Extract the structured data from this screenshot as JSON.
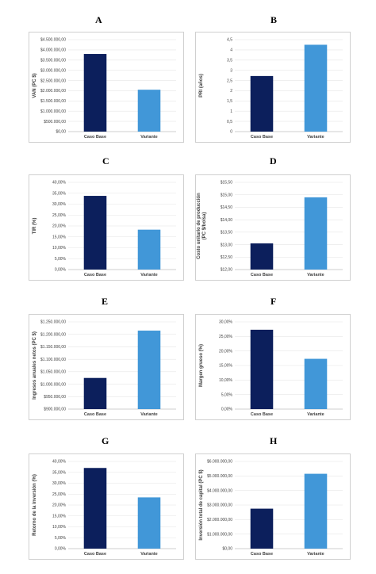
{
  "colors": {
    "caso_base": "#0c1f5c",
    "variante": "#4197d8"
  },
  "chart_data": [
    {
      "panel": "A",
      "type": "bar",
      "categories": [
        "Caso Base",
        "Variante"
      ],
      "values": [
        3800000,
        2050000
      ],
      "ylabel": "VAN (PC $)",
      "ylim": [
        0,
        4500000
      ],
      "ticks": [
        "$0,00",
        "$500.000,00",
        "$1.000.000,00",
        "$1.500.000,00",
        "$2.000.000,00",
        "$2.500.000,00",
        "$3.000.000,00",
        "$3.500.000,00",
        "$4.000.000,00",
        "$4.500.000,00"
      ],
      "grid": true
    },
    {
      "panel": "B",
      "type": "bar",
      "categories": [
        "Caso Base",
        "Variante"
      ],
      "values": [
        2.72,
        4.25
      ],
      "ylabel": "PRI (años)",
      "ylim": [
        0,
        4.5
      ],
      "ticks": [
        "0",
        "0,5",
        "1",
        "1,5",
        "2",
        "2,5",
        "3",
        "3,5",
        "4",
        "4,5"
      ],
      "grid": true
    },
    {
      "panel": "C",
      "type": "bar",
      "categories": [
        "Caso Base",
        "Variante"
      ],
      "values": [
        0.338,
        0.183
      ],
      "ylabel": "TIR (%)",
      "ylim": [
        0,
        0.4
      ],
      "ticks": [
        "0,00%",
        "5,00%",
        "10,00%",
        "15,00%",
        "20,00%",
        "25,00%",
        "30,00%",
        "35,00%",
        "40,00%"
      ],
      "grid": true
    },
    {
      "panel": "D",
      "type": "bar",
      "categories": [
        "Caso Base",
        "Variante"
      ],
      "values": [
        13.05,
        14.9
      ],
      "ylabel": "Costo unitario de producción (PC $/bolsa)",
      "ylim": [
        12,
        15.5
      ],
      "ticks": [
        "$12,00",
        "$12,50",
        "$13,00",
        "$13,50",
        "$14,00",
        "$14,50",
        "$15,00",
        "$15,50"
      ],
      "grid": true
    },
    {
      "panel": "E",
      "type": "bar",
      "categories": [
        "Caso Base",
        "Variante"
      ],
      "values": [
        1025000,
        1215000
      ],
      "ylabel": "Ingresos anuales netos (PC $)",
      "ylim": [
        900000,
        1250000
      ],
      "ticks": [
        "$900.000,00",
        "$950.000,00",
        "$1.000.000,00",
        "$1.050.000,00",
        "$1.100.000,00",
        "$1.150.000,00",
        "$1.200.000,00",
        "$1.250.000,00"
      ],
      "grid": true
    },
    {
      "panel": "F",
      "type": "bar",
      "categories": [
        "Caso Base",
        "Variante"
      ],
      "values": [
        0.273,
        0.173
      ],
      "ylabel": "Margen grueso (%)",
      "ylim": [
        0,
        0.3
      ],
      "ticks": [
        "0,00%",
        "5,00%",
        "10,00%",
        "15,00%",
        "20,00%",
        "25,00%",
        "30,00%"
      ],
      "grid": true
    },
    {
      "panel": "G",
      "type": "bar",
      "categories": [
        "Caso Base",
        "Variante"
      ],
      "values": [
        0.37,
        0.235
      ],
      "ylabel": "Retorno de la inversión (%)",
      "ylim": [
        0,
        0.4
      ],
      "ticks": [
        "0,00%",
        "5,00%",
        "10,00%",
        "15,00%",
        "20,00%",
        "25,00%",
        "30,00%",
        "35,00%",
        "40,00%"
      ],
      "grid": true
    },
    {
      "panel": "H",
      "type": "bar",
      "categories": [
        "Caso Base",
        "Variante"
      ],
      "values": [
        2750000,
        5150000
      ],
      "ylabel": "Inversión total de capital (PC $)",
      "ylim": [
        0,
        6000000
      ],
      "ticks": [
        "$0,00",
        "$1.000.000,00",
        "$2.000.000,00",
        "$3.000.000,00",
        "$4.000.000,00",
        "$5.000.000,00",
        "$6.000.000,00"
      ],
      "grid": true
    }
  ]
}
